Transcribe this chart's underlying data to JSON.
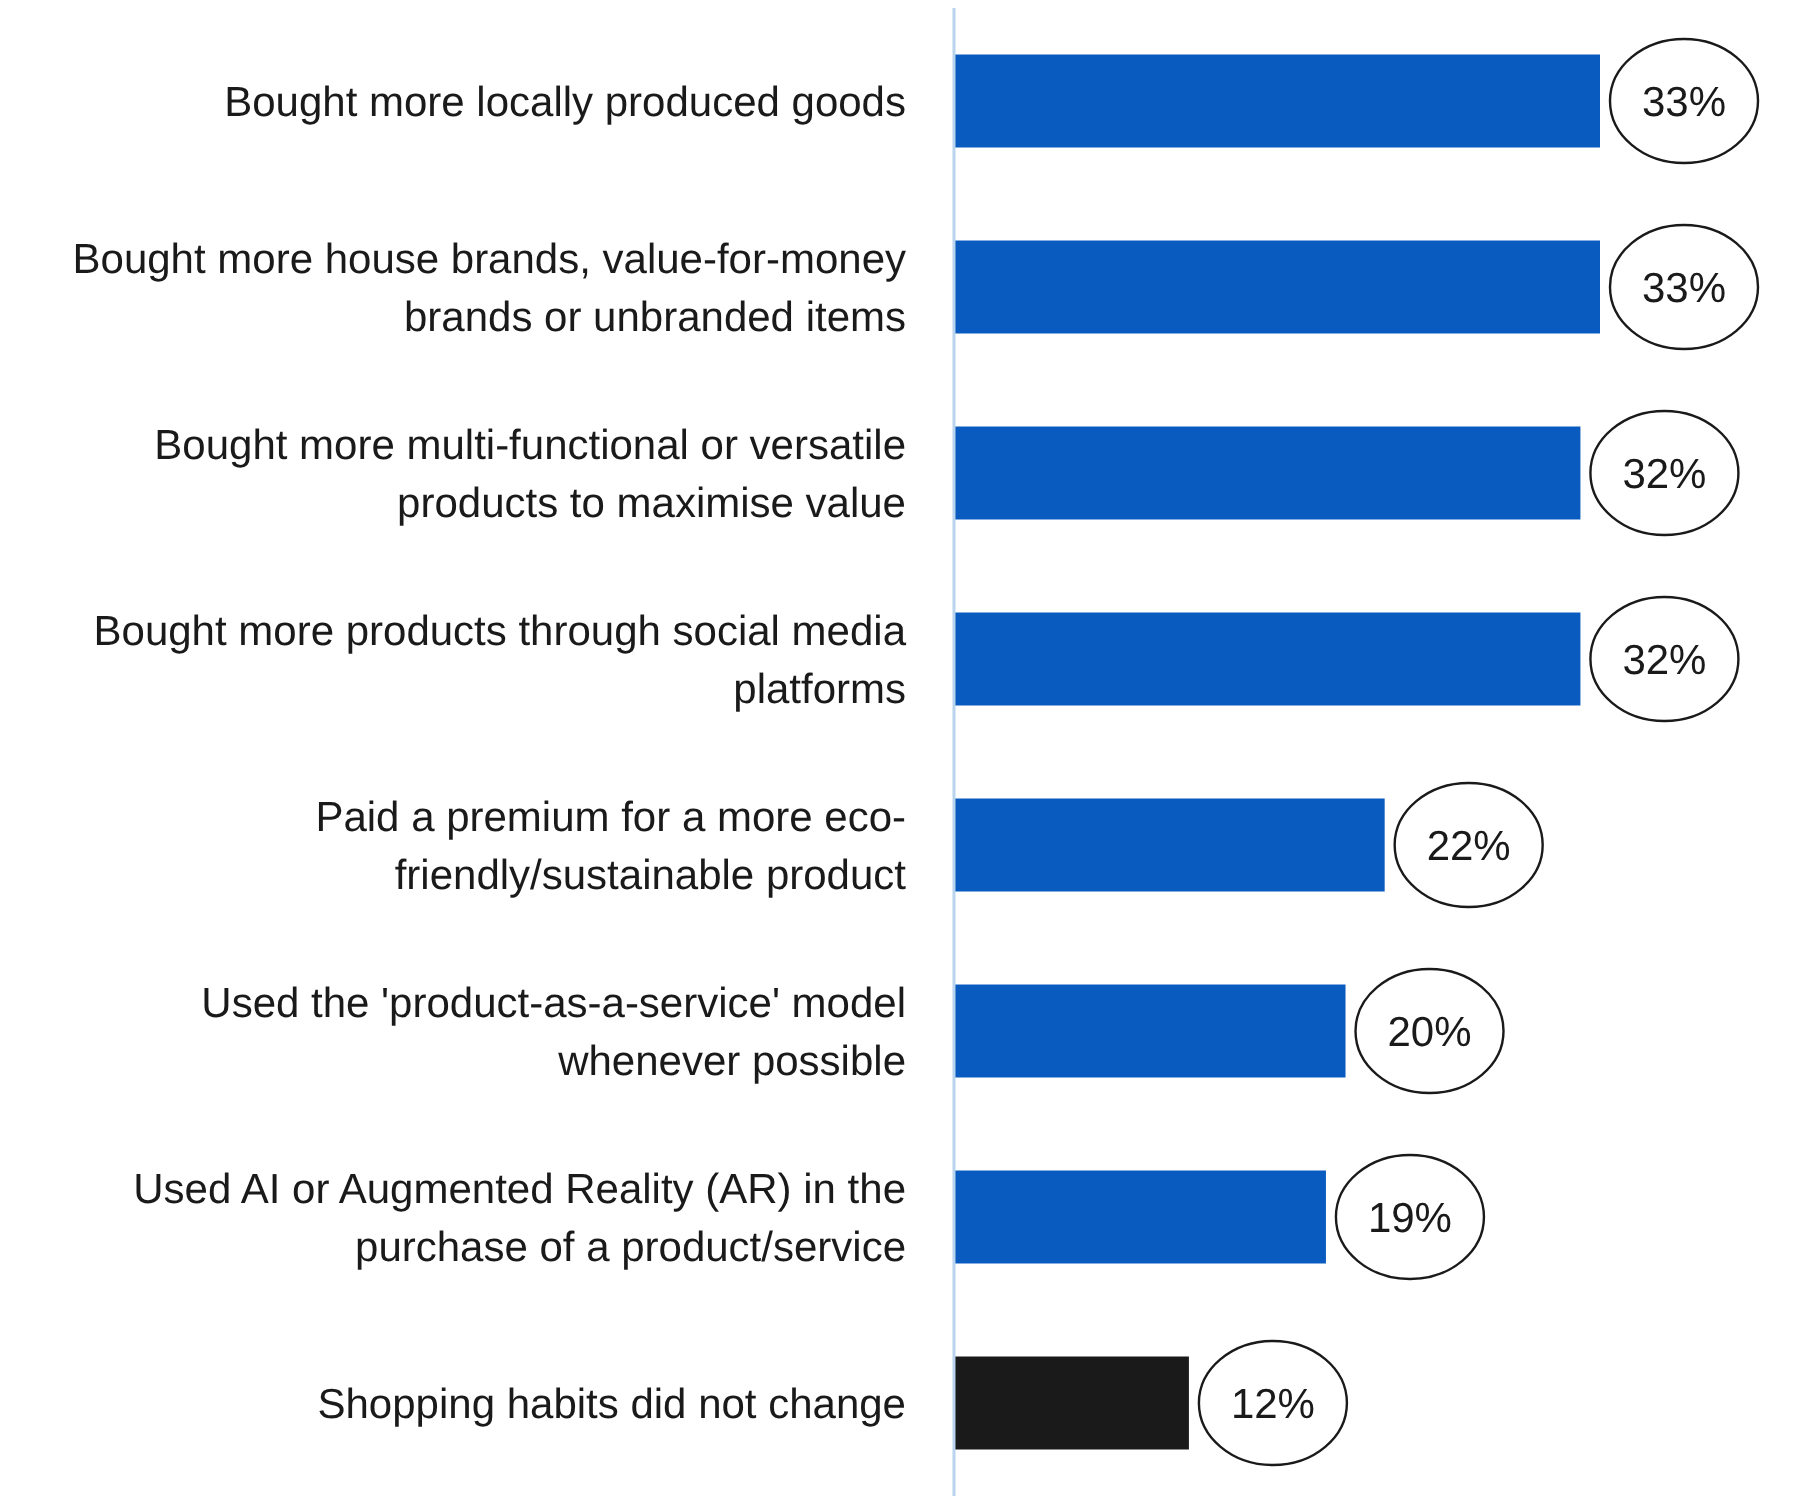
{
  "chart_data": {
    "type": "bar",
    "orientation": "horizontal",
    "categories": [
      "Bought more locally produced goods",
      "Bought more house brands, value-for-money brands or unbranded items",
      "Bought more multi-functional or versatile products to maximise value",
      "Bought more products through social media platforms",
      "Paid a premium for a more eco-friendly/sustainable product",
      "Used the 'product-as-a-service' model whenever possible",
      "Used AI or Augmented Reality (AR) in the purchase of a product/service",
      "Shopping habits did not change"
    ],
    "values": [
      33,
      33,
      32,
      32,
      22,
      20,
      19,
      12
    ],
    "colors": [
      "#0a5bbf",
      "#0a5bbf",
      "#0a5bbf",
      "#0a5bbf",
      "#0a5bbf",
      "#0a5bbf",
      "#0a5bbf",
      "#1a1a1a"
    ],
    "value_labels": [
      "33%",
      "33%",
      "32%",
      "32%",
      "22%",
      "20%",
      "19%",
      "12%"
    ],
    "relative": false
  }
}
